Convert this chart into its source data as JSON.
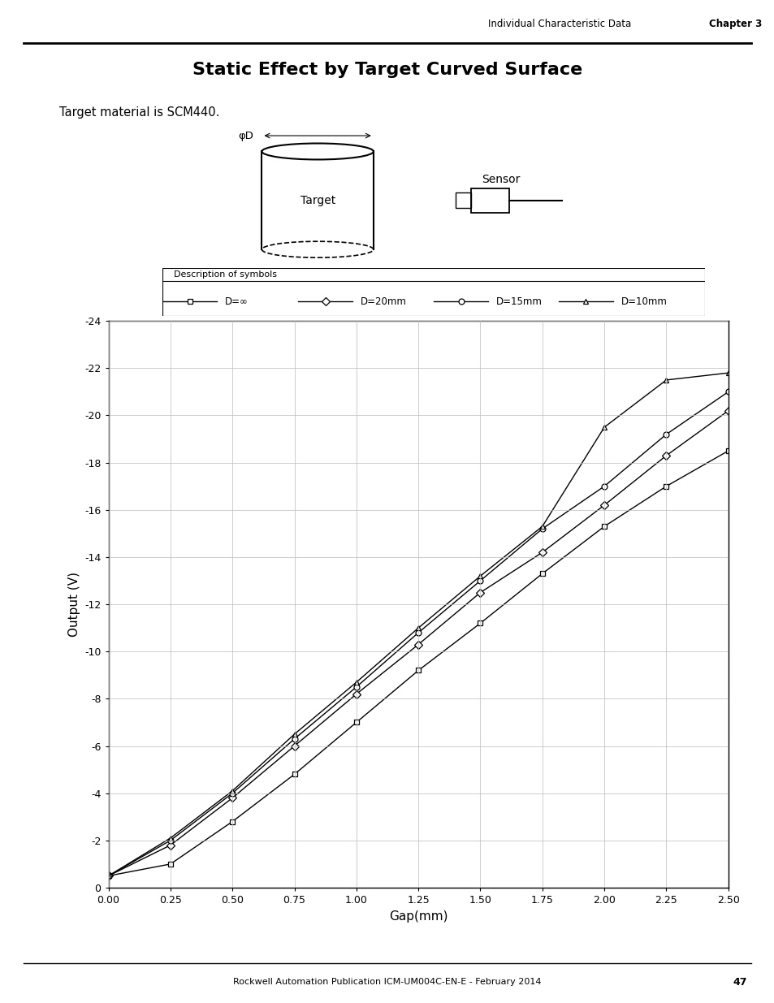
{
  "title": "Static Effect by Target Curved Surface",
  "subtitle": "Target material is SCM440.",
  "header_text": "Individual Characteristic Data",
  "chapter_text": "Chapter 3",
  "footer_text": "Rockwell Automation Publication ICM-UM004C-EN-E - February 2014",
  "page_number": "47",
  "xlabel": "Gap(mm)",
  "ylabel": "Output (V)",
  "xlim": [
    0.0,
    2.5
  ],
  "ylim": [
    0,
    -24
  ],
  "xticks": [
    0.0,
    0.25,
    0.5,
    0.75,
    1.0,
    1.25,
    1.5,
    1.75,
    2.0,
    2.25,
    2.5
  ],
  "yticks": [
    0,
    -2,
    -4,
    -6,
    -8,
    -10,
    -12,
    -14,
    -16,
    -18,
    -20,
    -22,
    -24
  ],
  "legend_title": "Description of symbols",
  "series": [
    {
      "label": "D=∞",
      "marker": "s",
      "x": [
        0.0,
        0.25,
        0.5,
        0.75,
        1.0,
        1.25,
        1.5,
        1.75,
        2.0,
        2.25,
        2.5
      ],
      "y": [
        -0.5,
        -1.0,
        -2.8,
        -4.8,
        -7.0,
        -9.2,
        -11.2,
        -13.3,
        -15.3,
        -17.0,
        -18.5
      ]
    },
    {
      "label": "D=20mm",
      "marker": "D",
      "x": [
        0.0,
        0.25,
        0.5,
        0.75,
        1.0,
        1.25,
        1.5,
        1.75,
        2.0,
        2.25,
        2.5
      ],
      "y": [
        -0.5,
        -1.8,
        -3.8,
        -6.0,
        -8.2,
        -10.3,
        -12.5,
        -14.2,
        -16.2,
        -18.3,
        -20.2
      ]
    },
    {
      "label": "D=15mm",
      "marker": "o",
      "x": [
        0.0,
        0.25,
        0.5,
        0.75,
        1.0,
        1.25,
        1.5,
        1.75,
        2.0,
        2.25,
        2.5
      ],
      "y": [
        -0.5,
        -2.0,
        -4.0,
        -6.3,
        -8.5,
        -10.8,
        -13.0,
        -15.2,
        -17.0,
        -19.2,
        -21.0
      ]
    },
    {
      "label": "D=10mm",
      "marker": "^",
      "x": [
        0.0,
        0.25,
        0.5,
        0.75,
        1.0,
        1.25,
        1.5,
        1.75,
        2.0,
        2.25,
        2.5
      ],
      "y": [
        -0.5,
        -2.1,
        -4.1,
        -6.5,
        -8.7,
        -11.0,
        -13.2,
        -15.3,
        -19.5,
        -21.5,
        -21.8
      ]
    }
  ],
  "background_color": "#ffffff",
  "grid_color": "#bbbbbb",
  "line_color": "#000000"
}
